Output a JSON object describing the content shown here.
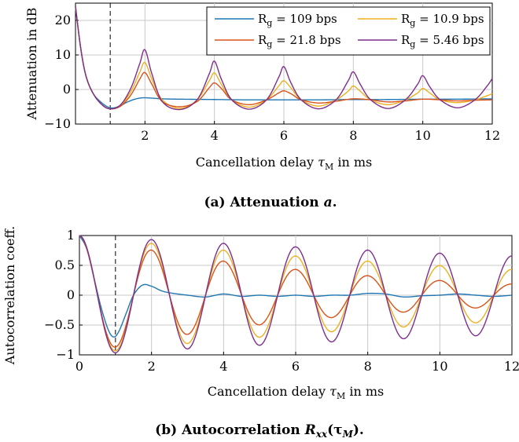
{
  "legend_labels": [
    "109 bps",
    "10.9 bps",
    "21.8 bps",
    "5.46 bps"
  ],
  "chart_data": [
    {
      "type": "line",
      "panel": "a",
      "caption_prefix": "(a) Attenuation ",
      "caption_symbol": "a",
      "caption_suffix": ".",
      "ylabel": "Attenuation in dB",
      "xlabel_prefix": "Cancellation delay ",
      "xlabel_symbol": "τ",
      "xlabel_subscript": "M",
      "xlabel_suffix": " in ms",
      "xlim": [
        0,
        12
      ],
      "ylim": [
        -10,
        25
      ],
      "xticks": [
        2,
        4,
        6,
        8,
        10,
        12
      ],
      "yticks": [
        -10,
        0,
        10,
        20
      ],
      "grid": true,
      "marker_x": 1,
      "legend_position": "top-right",
      "series": [
        {
          "name": "R_g = 109 bps",
          "color": "#1f77b4",
          "x": [
            0,
            0.15,
            0.3,
            0.5,
            0.75,
            1.0,
            1.25,
            1.5,
            1.75,
            2.0,
            2.5,
            3.0,
            4.0,
            5.0,
            6.0,
            7.0,
            8.0,
            9.0,
            10.0,
            11.0,
            12.0
          ],
          "y": [
            24,
            12,
            4,
            -1,
            -3.8,
            -5.3,
            -4.9,
            -3.6,
            -2.7,
            -2.4,
            -2.7,
            -2.8,
            -2.9,
            -3.0,
            -3.0,
            -3.0,
            -2.9,
            -2.9,
            -2.8,
            -2.8,
            -2.7
          ]
        },
        {
          "name": "R_g = 10.9 bps",
          "color": "#edb120",
          "x": [
            0,
            0.15,
            0.3,
            0.5,
            0.75,
            1.0,
            1.3,
            1.6,
            1.85,
            2.0,
            2.2,
            2.5,
            3.0,
            3.5,
            3.85,
            4.0,
            4.2,
            4.5,
            5.0,
            5.5,
            5.85,
            6.0,
            6.2,
            6.5,
            7.0,
            7.5,
            7.85,
            8.0,
            8.2,
            8.5,
            9.0,
            9.5,
            9.85,
            10.0,
            10.2,
            10.5,
            11.0,
            11.5,
            11.85,
            12.0
          ],
          "y": [
            24,
            12,
            4,
            -1,
            -4.3,
            -5.6,
            -4.6,
            -0.5,
            5.0,
            7.8,
            3.0,
            -3.0,
            -5.5,
            -3.0,
            2.5,
            4.8,
            1.5,
            -3.0,
            -5.1,
            -3.0,
            1.0,
            2.5,
            0.5,
            -3.0,
            -4.8,
            -3.0,
            -0.5,
            1.0,
            -0.5,
            -3.0,
            -4.4,
            -3.0,
            -1.0,
            0.3,
            -1.0,
            -3.0,
            -3.8,
            -3.0,
            -1.8,
            -1.2
          ]
        },
        {
          "name": "R_g = 21.8 bps",
          "color": "#d95319",
          "x": [
            0,
            0.15,
            0.3,
            0.5,
            0.75,
            1.0,
            1.3,
            1.6,
            1.85,
            2.0,
            2.2,
            2.5,
            3.0,
            3.5,
            3.85,
            4.0,
            4.2,
            4.5,
            5.0,
            5.5,
            5.85,
            6.0,
            6.2,
            6.5,
            7.0,
            7.5,
            8.0,
            8.5,
            9.0,
            9.5,
            10.0,
            10.5,
            11.0,
            11.5,
            12.0
          ],
          "y": [
            24,
            12,
            4,
            -1,
            -4.3,
            -5.6,
            -4.8,
            -1.5,
            3.0,
            4.9,
            1.5,
            -3.5,
            -5.0,
            -3.5,
            0.5,
            1.9,
            0.3,
            -3.0,
            -4.4,
            -3.0,
            -1.0,
            -0.4,
            -1.2,
            -3.0,
            -3.9,
            -3.4,
            -2.7,
            -3.0,
            -3.6,
            -3.3,
            -2.8,
            -3.0,
            -3.3,
            -3.1,
            -3.0
          ]
        },
        {
          "name": "R_g = 5.46 bps",
          "color": "#7e2f8e",
          "x": [
            0,
            0.15,
            0.3,
            0.5,
            0.75,
            1.0,
            1.3,
            1.6,
            1.85,
            2.0,
            2.2,
            2.5,
            3.0,
            3.5,
            3.85,
            4.0,
            4.2,
            4.5,
            5.0,
            5.5,
            5.85,
            6.0,
            6.2,
            6.5,
            7.0,
            7.5,
            7.85,
            8.0,
            8.2,
            8.5,
            9.0,
            9.5,
            9.85,
            10.0,
            10.2,
            10.5,
            11.0,
            11.5,
            11.85,
            12.0
          ],
          "y": [
            24,
            12,
            4,
            -1,
            -4.3,
            -5.6,
            -4.4,
            0.5,
            7.5,
            11.5,
            4.5,
            -3.5,
            -5.8,
            -3.0,
            4.5,
            8.2,
            3.0,
            -3.0,
            -5.7,
            -3.0,
            3.5,
            6.6,
            2.0,
            -3.0,
            -5.6,
            -3.0,
            2.5,
            5.1,
            1.5,
            -3.0,
            -5.5,
            -3.0,
            1.5,
            4.0,
            0.8,
            -3.0,
            -5.3,
            -3.0,
            1.0,
            3.2
          ]
        }
      ]
    },
    {
      "type": "line",
      "panel": "b",
      "caption_prefix": "(b) Autocorrelation ",
      "caption_symbol": "R",
      "caption_symbol_sub": "xx",
      "caption_args": "(τ",
      "caption_args_sub": "M",
      "caption_suffix": ").",
      "ylabel": "Autocorrelation coeff.",
      "xlabel_prefix": "Cancellation delay ",
      "xlabel_symbol": "τ",
      "xlabel_subscript": "M",
      "xlabel_suffix": " in ms",
      "xlim": [
        0,
        12
      ],
      "ylim": [
        -1,
        1
      ],
      "xticks": [
        0,
        2,
        4,
        6,
        8,
        10,
        12
      ],
      "yticks": [
        -1,
        -0.5,
        0,
        0.5,
        1
      ],
      "ytick_labels": [
        "−1",
        "−0.5",
        "0",
        "0.5",
        "1"
      ],
      "grid": true,
      "marker_x": 1,
      "series": [
        {
          "name": "R_g = 109 bps",
          "color": "#1f77b4",
          "x": [
            0,
            0.2,
            0.4,
            0.6,
            0.8,
            0.95,
            1.1,
            1.3,
            1.5,
            1.75,
            2.0,
            2.25,
            2.5,
            3.0,
            3.5,
            4.0,
            4.5,
            5.0,
            5.5,
            6.0,
            6.5,
            7.0,
            7.5,
            8.0,
            8.5,
            9.0,
            9.5,
            10.0,
            10.5,
            11.0,
            11.5,
            12.0
          ],
          "y": [
            1.0,
            0.78,
            0.3,
            -0.2,
            -0.58,
            -0.7,
            -0.6,
            -0.3,
            0.0,
            0.17,
            0.15,
            0.08,
            0.04,
            0.0,
            -0.03,
            0.02,
            -0.02,
            0.0,
            -0.02,
            0.0,
            -0.02,
            0.0,
            0.0,
            0.03,
            0.02,
            -0.03,
            -0.01,
            0.0,
            0.02,
            0.0,
            -0.02,
            0.0
          ]
        },
        {
          "name": "R_g = 10.9 bps",
          "color": "#edb120",
          "fn": "cos",
          "decay": 0.2,
          "noise": 0
        },
        {
          "name": "R_g = 21.8 bps",
          "color": "#d95319",
          "fn": "cos",
          "decay": 0.4,
          "noise": 0
        },
        {
          "name": "R_g = 5.46 bps",
          "color": "#7e2f8e",
          "fn": "cos",
          "decay": 0.1,
          "noise": 0
        }
      ]
    }
  ]
}
